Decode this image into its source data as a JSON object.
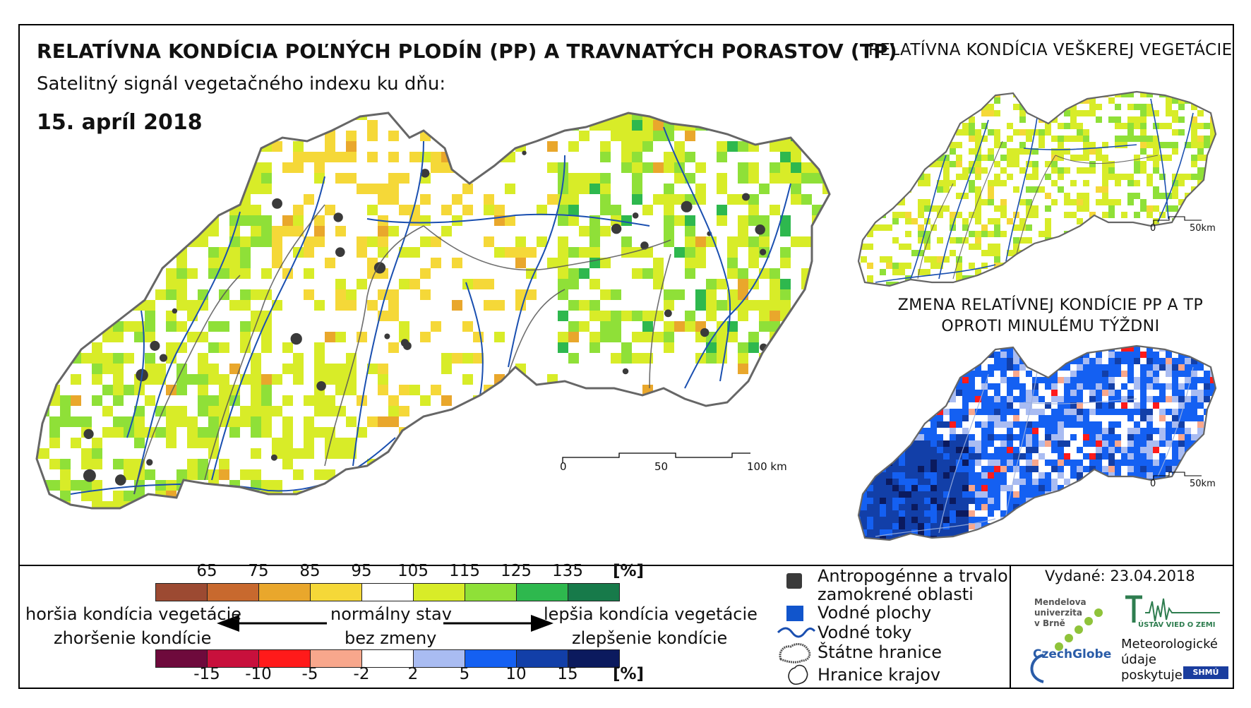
{
  "header": {
    "title": "RELATÍVNA KONDÍCIA POĽNÝCH PLODÍN (PP) A TRAVNATÝCH PORASTOV (TP)",
    "subtitle": "Satelitný signál vegetačného indexu ku dňu:",
    "date": "15. apríl 2018",
    "right_title": "RELATÍVNA KONDÍCIA VEŠKEREJ VEGETÁCIE",
    "change_title_line1": "ZMENA RELATÍVNEJ KONDÍCIE PP A TP",
    "change_title_line2": "OPROTI MINULÉMU TÝŽDNI"
  },
  "main_scale": {
    "label_0": "0",
    "label_50": "50",
    "label_100": "100 km"
  },
  "inset_scale": {
    "label_0": "0",
    "label_50": "50km"
  },
  "legend": {
    "condition_ticks": [
      "65",
      "75",
      "85",
      "95",
      "105",
      "115",
      "125",
      "135"
    ],
    "condition_unit": "[%]",
    "condition_colors": [
      "#9c4a32",
      "#c8692e",
      "#e9a72c",
      "#f5d838",
      "#ffffff",
      "#d8ec28",
      "#8fe038",
      "#2eb84e",
      "#177a4a"
    ],
    "change_ticks": [
      "-15",
      "-10",
      "-5",
      "-2",
      "2",
      "5",
      "10",
      "15"
    ],
    "change_unit": "[%]",
    "change_colors": [
      "#6e0a3c",
      "#c8103c",
      "#ff1a1a",
      "#f8a78c",
      "#ffffff",
      "#a9bcf2",
      "#1460f2",
      "#123fa8",
      "#0b1a5e"
    ],
    "worse_condition": "horšia kondícia vegetácie",
    "worse_change": "zhoršenie kondície",
    "normal_condition": "normálny stav",
    "normal_change": "bez zmeny",
    "better_condition": "lepšia kondícia vegetácie",
    "better_change": "zlepšenie kondície"
  },
  "map_legend": {
    "anthropogenic_line1": "Antropogénne a trvalo",
    "anthropogenic_line2": "zamokrené oblasti",
    "water_bodies": "Vodné plochy",
    "streams": "Vodné toky",
    "state_borders": "Štátne hranice",
    "region_borders": "Hranice krajov"
  },
  "footer": {
    "issued": "Vydané: 23.04.2018",
    "mendel_line1": "Mendelova",
    "mendel_line2": "univerzita",
    "mendel_line3": "v Brně",
    "czechglobe": "CzechGlobe",
    "ustav": "ÚSTAV VIED O ZEMI",
    "meteo_line1": "Meteorologické",
    "meteo_line2": "údaje",
    "meteo_line3": "poskytuje:",
    "shmu": "SHMÚ"
  },
  "colors": {
    "anthropogenic": "#3a3a3a",
    "water": "#1155cc",
    "stream": "#1a4fb0",
    "border": "#666666"
  }
}
